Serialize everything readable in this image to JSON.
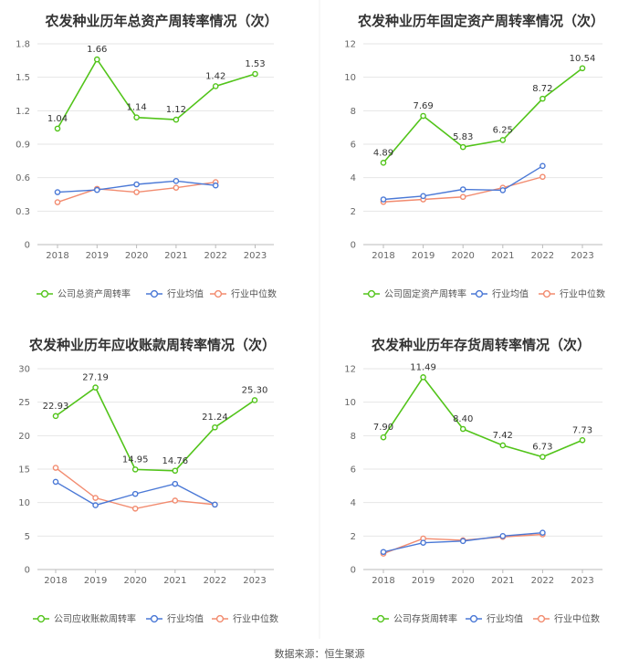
{
  "source_note": "数据来源：恒生聚源",
  "colors": {
    "company": "#52c41a",
    "avg": "#4a78d6",
    "median": "#f28b6f",
    "grid": "#e6e6e6",
    "axis": "#bbbbbb"
  },
  "chart_data": [
    {
      "type": "line",
      "title": "农发种业历年总资产周转率情况（次）",
      "categories": [
        "2018",
        "2019",
        "2020",
        "2021",
        "2022",
        "2023"
      ],
      "ylim": [
        0,
        1.8
      ],
      "yticks": [
        "0",
        "0.3",
        "0.6",
        "0.9",
        "1.2",
        "1.5",
        "1.8"
      ],
      "grid": true,
      "legend_position": "bottom",
      "series": [
        {
          "name": "公司总资产周转率",
          "color": "#52c41a",
          "values": [
            1.04,
            1.66,
            1.14,
            1.12,
            1.42,
            1.53
          ],
          "labels": [
            "1.04",
            "1.66",
            "1.14",
            "1.12",
            "1.42",
            "1.53"
          ]
        },
        {
          "name": "行业均值",
          "color": "#4a78d6",
          "values": [
            0.47,
            0.49,
            0.54,
            0.57,
            0.53,
            null
          ]
        },
        {
          "name": "行业中位数",
          "color": "#f28b6f",
          "values": [
            0.38,
            0.5,
            0.47,
            0.51,
            0.56,
            null
          ]
        }
      ]
    },
    {
      "type": "line",
      "title": "农发种业历年固定资产周转率情况（次）",
      "categories": [
        "2018",
        "2019",
        "2020",
        "2021",
        "2022",
        "2023"
      ],
      "ylim": [
        0,
        12
      ],
      "yticks": [
        "0",
        "2",
        "4",
        "6",
        "8",
        "10",
        "12"
      ],
      "grid": true,
      "legend_position": "bottom",
      "series": [
        {
          "name": "公司固定资产周转率",
          "color": "#52c41a",
          "values": [
            4.89,
            7.69,
            5.83,
            6.25,
            8.72,
            10.54
          ],
          "labels": [
            "4.89",
            "7.69",
            "5.83",
            "6.25",
            "8.72",
            "10.54"
          ]
        },
        {
          "name": "行业均值",
          "color": "#4a78d6",
          "values": [
            2.7,
            2.9,
            3.3,
            3.25,
            4.7,
            null
          ]
        },
        {
          "name": "行业中位数",
          "color": "#f28b6f",
          "values": [
            2.55,
            2.7,
            2.85,
            3.4,
            4.05,
            null
          ]
        }
      ]
    },
    {
      "type": "line",
      "title": "农发种业历年应收账款周转率情况（次）",
      "categories": [
        "2018",
        "2019",
        "2020",
        "2021",
        "2022",
        "2023"
      ],
      "ylim": [
        0,
        30
      ],
      "yticks": [
        "0",
        "5",
        "10",
        "15",
        "20",
        "25",
        "30"
      ],
      "grid": true,
      "legend_position": "bottom",
      "series": [
        {
          "name": "公司应收账款周转率",
          "color": "#52c41a",
          "values": [
            22.93,
            27.19,
            14.95,
            14.76,
            21.24,
            25.3
          ],
          "labels": [
            "22.93",
            "27.19",
            "14.95",
            "14.76",
            "21.24",
            "25.30"
          ]
        },
        {
          "name": "行业均值",
          "color": "#4a78d6",
          "values": [
            13.1,
            9.6,
            11.3,
            12.8,
            9.7,
            null
          ]
        },
        {
          "name": "行业中位数",
          "color": "#f28b6f",
          "values": [
            15.2,
            10.7,
            9.1,
            10.3,
            9.7,
            null
          ]
        }
      ]
    },
    {
      "type": "line",
      "title": "农发种业历年存货周转率情况（次）",
      "categories": [
        "2018",
        "2019",
        "2020",
        "2021",
        "2022",
        "2023"
      ],
      "ylim": [
        0,
        12
      ],
      "yticks": [
        "0",
        "2",
        "4",
        "6",
        "8",
        "10",
        "12"
      ],
      "grid": true,
      "legend_position": "bottom",
      "series": [
        {
          "name": "公司存货周转率",
          "color": "#52c41a",
          "values": [
            7.9,
            11.49,
            8.4,
            7.42,
            6.73,
            7.73
          ],
          "labels": [
            "7.90",
            "11.49",
            "8.40",
            "7.42",
            "6.73",
            "7.73"
          ]
        },
        {
          "name": "行业均值",
          "color": "#4a78d6",
          "values": [
            1.05,
            1.6,
            1.7,
            2.0,
            2.2,
            null
          ]
        },
        {
          "name": "行业中位数",
          "color": "#f28b6f",
          "values": [
            0.95,
            1.85,
            1.75,
            1.95,
            2.1,
            null
          ]
        }
      ]
    }
  ]
}
